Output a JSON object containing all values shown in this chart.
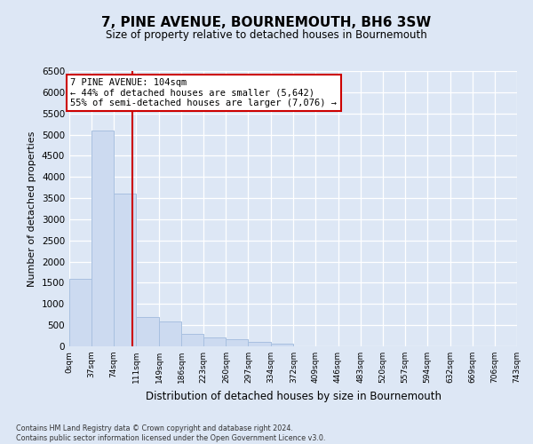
{
  "title": "7, PINE AVENUE, BOURNEMOUTH, BH6 3SW",
  "subtitle": "Size of property relative to detached houses in Bournemouth",
  "xlabel": "Distribution of detached houses by size in Bournemouth",
  "ylabel": "Number of detached properties",
  "footer_line1": "Contains HM Land Registry data © Crown copyright and database right 2024.",
  "footer_line2": "Contains public sector information licensed under the Open Government Licence v3.0.",
  "bar_edges": [
    0,
    37,
    74,
    111,
    149,
    186,
    223,
    260,
    297,
    334,
    372,
    409,
    446,
    483,
    520,
    557,
    594,
    632,
    669,
    706,
    743
  ],
  "bar_heights": [
    1600,
    5100,
    3600,
    700,
    580,
    300,
    200,
    160,
    100,
    60,
    0,
    0,
    0,
    0,
    0,
    0,
    0,
    0,
    0,
    0
  ],
  "bar_color": "#ccdaf0",
  "bar_edge_color": "#a8c0e0",
  "vline_x": 104,
  "vline_color": "#cc0000",
  "annotation_text": "7 PINE AVENUE: 104sqm\n← 44% of detached houses are smaller (5,642)\n55% of semi-detached houses are larger (7,076) →",
  "annotation_box_color": "#ffffff",
  "annotation_box_edge_color": "#cc0000",
  "ylim_max": 6500,
  "yticks": [
    0,
    500,
    1000,
    1500,
    2000,
    2500,
    3000,
    3500,
    4000,
    4500,
    5000,
    5500,
    6000,
    6500
  ],
  "bg_color": "#dde7f5",
  "grid_color": "#ffffff",
  "tick_labels": [
    "0sqm",
    "37sqm",
    "74sqm",
    "111sqm",
    "149sqm",
    "186sqm",
    "223sqm",
    "260sqm",
    "297sqm",
    "334sqm",
    "372sqm",
    "409sqm",
    "446sqm",
    "483sqm",
    "520sqm",
    "557sqm",
    "594sqm",
    "632sqm",
    "669sqm",
    "706sqm",
    "743sqm"
  ]
}
